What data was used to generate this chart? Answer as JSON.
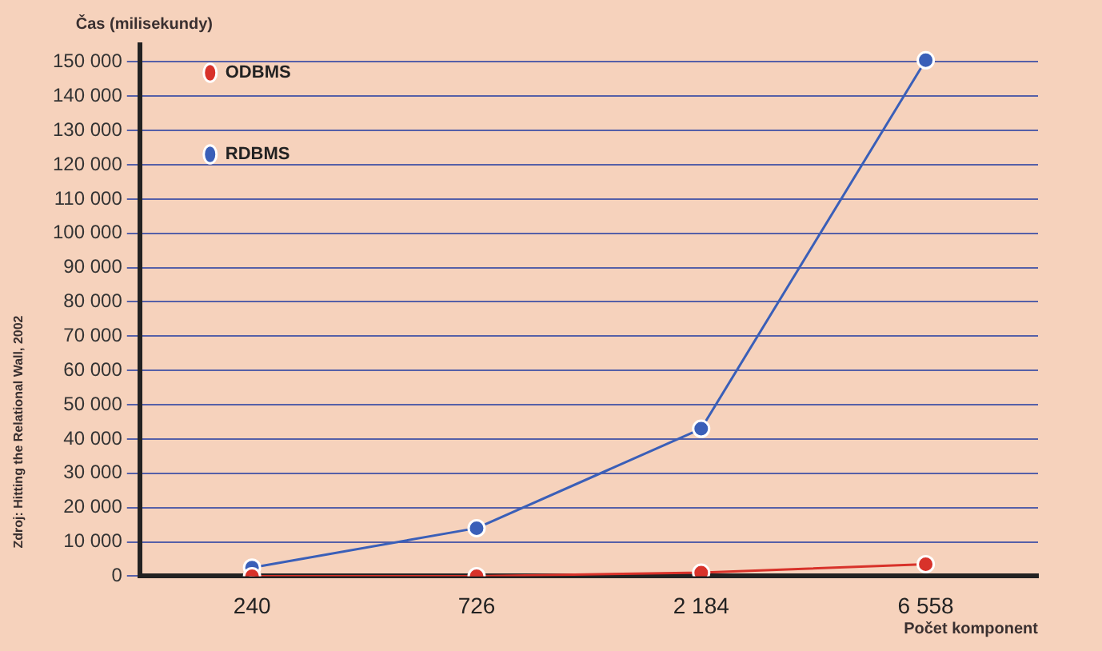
{
  "chart_data": {
    "type": "line",
    "ylabel": "Čas (milisekundy)",
    "xlabel": "Počet komponent",
    "annotations": [
      "Zdroj: Hitting the Relational Wall, 2002"
    ],
    "categories": [
      "240",
      "726",
      "2 184",
      "6 558"
    ],
    "series": [
      {
        "name": "ODBMS",
        "color": "#d8322a",
        "values": [
          0,
          0,
          1000,
          3500
        ]
      },
      {
        "name": "RDBMS",
        "color": "#3a5fb8",
        "values": [
          2500,
          14000,
          43000,
          150500
        ]
      }
    ],
    "ylim": [
      0,
      155000
    ],
    "yticks": [
      {
        "value": 0,
        "label": "0"
      },
      {
        "value": 10000,
        "label": "10 000"
      },
      {
        "value": 20000,
        "label": "20 000"
      },
      {
        "value": 30000,
        "label": "30 000"
      },
      {
        "value": 40000,
        "label": "40 000"
      },
      {
        "value": 50000,
        "label": "50 000"
      },
      {
        "value": 60000,
        "label": "60 000"
      },
      {
        "value": 70000,
        "label": "70 000"
      },
      {
        "value": 80000,
        "label": "80 000"
      },
      {
        "value": 90000,
        "label": "90 000"
      },
      {
        "value": 100000,
        "label": "100 000"
      },
      {
        "value": 110000,
        "label": "110 000"
      },
      {
        "value": 120000,
        "label": "120 000"
      },
      {
        "value": 130000,
        "label": "130 000"
      },
      {
        "value": 140000,
        "label": "140 000"
      },
      {
        "value": 150000,
        "label": "150 000"
      }
    ],
    "grid": "y",
    "legend": "top left",
    "marker": "circle",
    "line_style": "solid"
  }
}
